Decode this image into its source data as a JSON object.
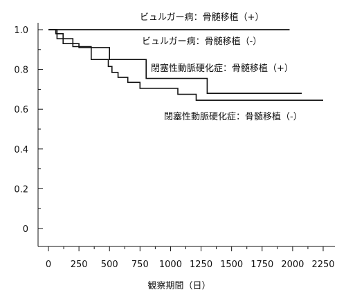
{
  "chart_data": {
    "type": "line",
    "title": "",
    "xlabel": "観察期間（日）",
    "ylabel": "",
    "xlim": [
      0,
      2250
    ],
    "ylim": [
      0,
      1.0
    ],
    "x_ticks": [
      0,
      250,
      500,
      750,
      1000,
      1250,
      1500,
      1750,
      2000,
      2250
    ],
    "x_tick_labels": [
      "0",
      "250",
      "500",
      "750",
      "1000",
      "1250",
      "1500",
      "1750",
      "2000",
      "2250"
    ],
    "y_ticks": [
      0,
      0.2,
      0.4,
      0.6,
      0.8,
      1.0
    ],
    "y_tick_labels": [
      "0",
      "0.2",
      "0.4",
      "0.6",
      "0.8",
      "1.0"
    ],
    "grid": false,
    "legend": "none",
    "step": true,
    "line_color": "#111111",
    "series": [
      {
        "name": "ビュルガー病：骨髄移植（+）",
        "points": [
          [
            0,
            1.0
          ],
          [
            1975,
            1.0
          ]
        ]
      },
      {
        "name": "ビュルガー病：骨髄移植（-）",
        "points": [
          [
            0,
            1.0
          ],
          [
            1975,
            1.0
          ]
        ]
      },
      {
        "name": "閉塞性動脈硬化症：骨髄移植（+）",
        "points": [
          [
            0,
            1.0
          ],
          [
            60,
            1.0
          ],
          [
            60,
            0.98
          ],
          [
            120,
            0.98
          ],
          [
            120,
            0.93
          ],
          [
            250,
            0.93
          ],
          [
            250,
            0.91
          ],
          [
            500,
            0.91
          ],
          [
            500,
            0.85
          ],
          [
            800,
            0.85
          ],
          [
            800,
            0.755
          ],
          [
            1300,
            0.755
          ],
          [
            1300,
            0.68
          ],
          [
            2075,
            0.68
          ]
        ]
      },
      {
        "name": "閉塞性動脈硬化症：骨髄移植（-）",
        "points": [
          [
            0,
            1.0
          ],
          [
            70,
            1.0
          ],
          [
            70,
            0.955
          ],
          [
            200,
            0.955
          ],
          [
            200,
            0.915
          ],
          [
            350,
            0.915
          ],
          [
            350,
            0.85
          ],
          [
            490,
            0.85
          ],
          [
            490,
            0.815
          ],
          [
            520,
            0.815
          ],
          [
            520,
            0.785
          ],
          [
            570,
            0.785
          ],
          [
            570,
            0.76
          ],
          [
            650,
            0.76
          ],
          [
            650,
            0.735
          ],
          [
            750,
            0.735
          ],
          [
            750,
            0.705
          ],
          [
            1060,
            0.705
          ],
          [
            1060,
            0.675
          ],
          [
            1210,
            0.675
          ],
          [
            1210,
            0.645
          ],
          [
            2250,
            0.645
          ]
        ]
      }
    ]
  }
}
